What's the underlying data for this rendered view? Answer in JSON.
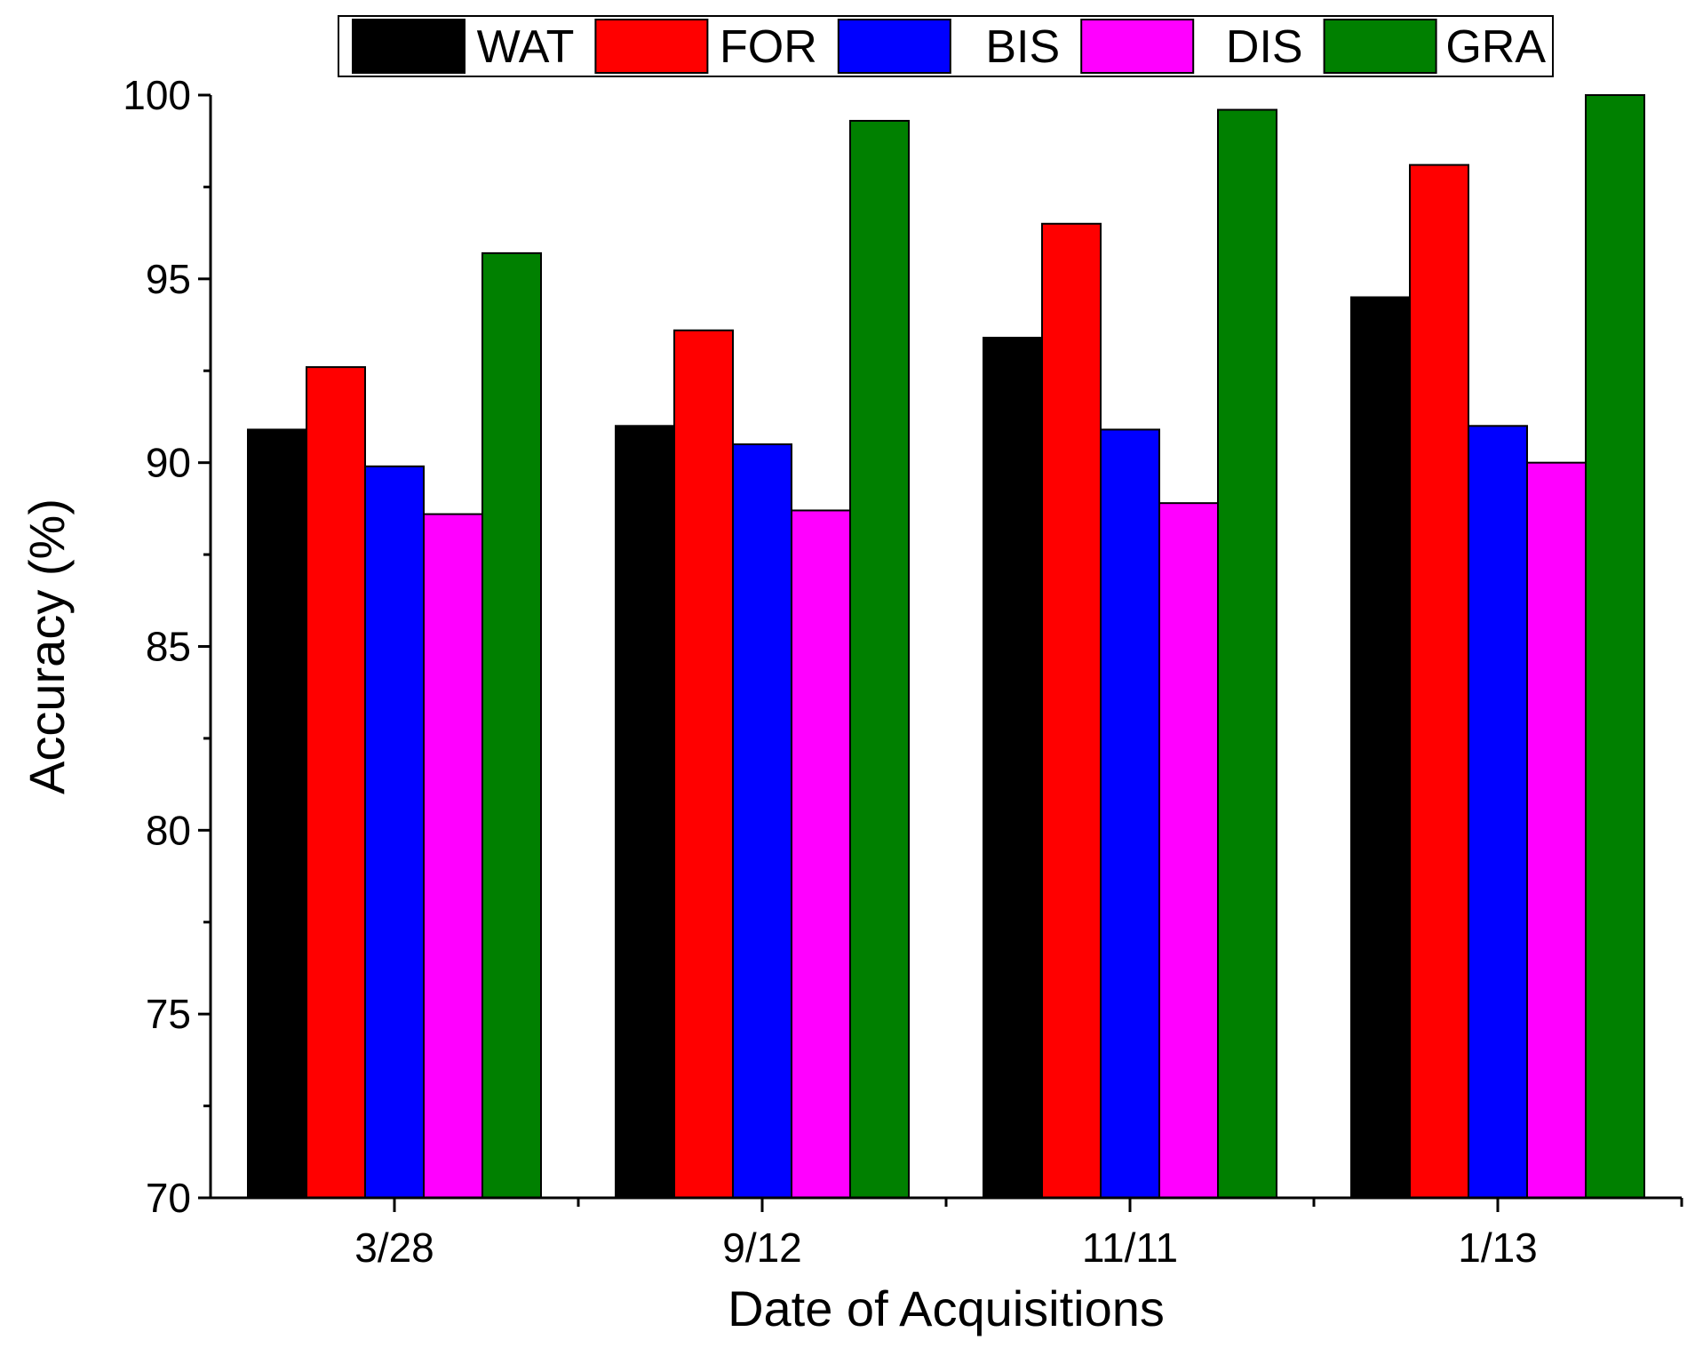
{
  "chart_data": {
    "type": "bar",
    "title": "",
    "xlabel": "Date of Acquisitions",
    "ylabel": "Accuracy (%)",
    "ylim": [
      70,
      100
    ],
    "yticks": [
      70,
      75,
      80,
      85,
      90,
      95,
      100
    ],
    "categories": [
      "3/28",
      "9/12",
      "11/11",
      "1/13"
    ],
    "legend_position": "top",
    "series": [
      {
        "name": "WAT",
        "color": "#000000",
        "values": [
          90.9,
          91.0,
          93.4,
          94.5
        ]
      },
      {
        "name": "FOR",
        "color": "#ff0000",
        "values": [
          92.6,
          93.6,
          96.5,
          98.1
        ]
      },
      {
        "name": "BIS",
        "color": "#0000ff",
        "values": [
          89.9,
          90.5,
          90.9,
          91.0
        ]
      },
      {
        "name": "DIS",
        "color": "#ff00ff",
        "values": [
          88.6,
          88.7,
          88.9,
          90.0
        ]
      },
      {
        "name": "GRA",
        "color": "#008000",
        "values": [
          95.7,
          99.3,
          99.6,
          100.0
        ]
      }
    ]
  }
}
